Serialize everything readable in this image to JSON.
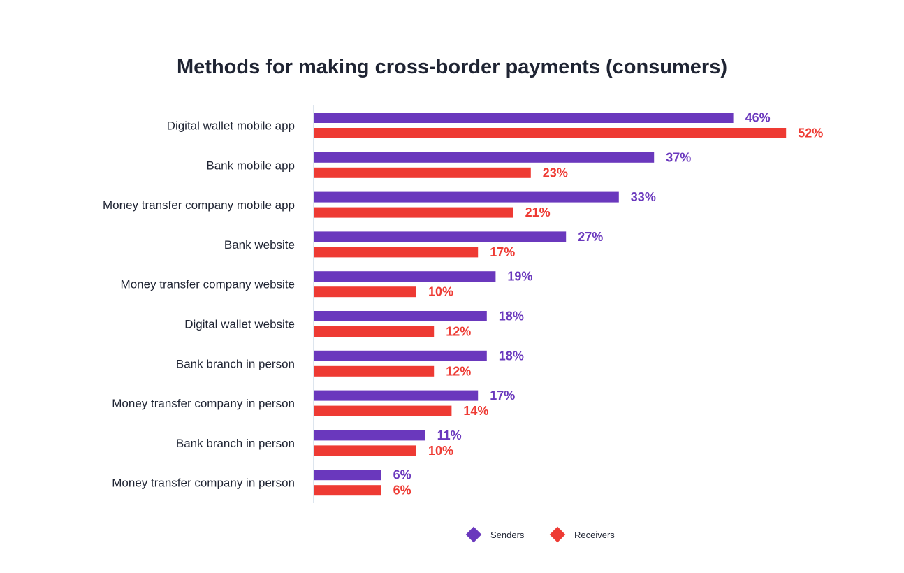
{
  "chart_data": {
    "type": "bar",
    "orientation": "horizontal",
    "title": "Methods for making cross-border payments (consumers)",
    "categories": [
      "Digital wallet mobile app",
      "Bank mobile app",
      "Money transfer company mobile app",
      "Bank website",
      "Money transfer company website",
      "Digital wallet website",
      "Bank branch in person",
      "Money transfer company in person",
      "Bank branch in person",
      "Money transfer company in person"
    ],
    "series": [
      {
        "name": "Senders",
        "color": "#6a38bd",
        "values": [
          46,
          37,
          33,
          27,
          19,
          18,
          18,
          17,
          11,
          6
        ]
      },
      {
        "name": "Receivers",
        "color": "#ee3a33",
        "values": [
          52,
          23,
          21,
          17,
          10,
          12,
          12,
          14,
          10,
          6
        ]
      }
    ],
    "value_suffix": "%",
    "legend_position": "bottom",
    "grid": false,
    "axis_color": "#dde5ee"
  }
}
